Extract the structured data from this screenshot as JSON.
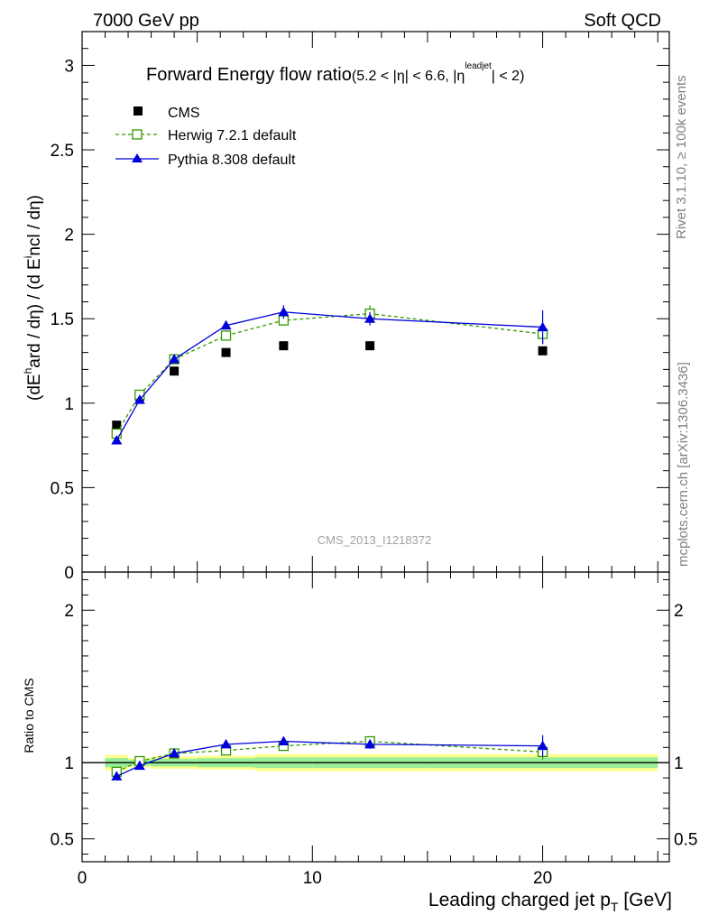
{
  "header": {
    "left": "7000 GeV pp",
    "right": "Soft QCD"
  },
  "side_labels": {
    "top": "Rivet 3.1.10, ≥ 100k events",
    "bottom": "mcplots.cern.ch [arXiv:1306.3436]"
  },
  "watermark": "CMS_2013_I1218372",
  "chart_data": [
    {
      "type": "scatter",
      "panel": "main",
      "title_main": "Forward Energy flow ratio",
      "title_cond_a": "(5.2 < |η| < 6.6, |η",
      "title_cond_sup": "leadjet",
      "title_cond_b": "| < 2)",
      "ylabel": "(dE^hard / dη) / (d E^incl / dη)",
      "xlim": [
        0,
        25.5
      ],
      "ylim": [
        0,
        3.2
      ],
      "yticks": [
        0,
        0.5,
        1,
        1.5,
        2,
        2.5,
        3
      ],
      "ytick_labels": [
        "0",
        "0.5",
        "1",
        "1.5",
        "2",
        "2.5",
        "3"
      ],
      "legend_position": "top-left",
      "series": [
        {
          "name": "CMS",
          "style": "marker",
          "color": "#000000",
          "marker": "filled-square",
          "x": [
            1.5,
            2.5,
            4.0,
            6.25,
            8.75,
            12.5,
            20.0
          ],
          "y": [
            0.87,
            1.04,
            1.19,
            1.3,
            1.34,
            1.34,
            1.31
          ]
        },
        {
          "name": "Herwig 7.2.1 default",
          "style": "dashed",
          "color": "#339900",
          "marker": "open-square",
          "x": [
            1.5,
            2.5,
            4.0,
            6.25,
            8.75,
            12.5,
            20.0
          ],
          "y": [
            0.82,
            1.05,
            1.26,
            1.4,
            1.49,
            1.53,
            1.41
          ],
          "err": [
            0.02,
            0.02,
            0.02,
            0.02,
            0.03,
            0.05,
            0.06
          ]
        },
        {
          "name": "Pythia 8.308 default",
          "style": "solid",
          "color": "#0000dd",
          "marker": "filled-triangle",
          "x": [
            1.5,
            2.5,
            4.0,
            6.25,
            8.75,
            12.5,
            20.0
          ],
          "y": [
            0.78,
            1.02,
            1.26,
            1.46,
            1.54,
            1.5,
            1.45
          ],
          "err": [
            0.01,
            0.01,
            0.01,
            0.02,
            0.04,
            0.04,
            0.1
          ]
        }
      ]
    },
    {
      "type": "scatter",
      "panel": "ratio",
      "ylabel": "Ratio to CMS",
      "xlabel": "Leading charged jet p_T [GeV]",
      "xlim": [
        0,
        25.5
      ],
      "ylim": [
        0.35,
        2.25
      ],
      "yticks": [
        0.5,
        1,
        2
      ],
      "ytick_labels": [
        "0.5",
        "1",
        "2"
      ],
      "xticks": [
        0,
        10,
        20
      ],
      "xtick_labels": [
        "0",
        "10",
        "20"
      ],
      "uncertainty_bands": [
        {
          "x0": 1.0,
          "x1": 2.0,
          "yellow": [
            0.95,
            1.05
          ],
          "green": [
            0.97,
            1.03
          ]
        },
        {
          "x0": 2.0,
          "x1": 3.0,
          "yellow": [
            0.97,
            1.03
          ],
          "green": [
            0.98,
            1.02
          ]
        },
        {
          "x0": 3.0,
          "x1": 5.0,
          "yellow": [
            0.96,
            1.04
          ],
          "green": [
            0.975,
            1.025
          ]
        },
        {
          "x0": 5.0,
          "x1": 7.5,
          "yellow": [
            0.955,
            1.045
          ],
          "green": [
            0.97,
            1.03
          ]
        },
        {
          "x0": 7.5,
          "x1": 10.0,
          "yellow": [
            0.945,
            1.055
          ],
          "green": [
            0.965,
            1.035
          ]
        },
        {
          "x0": 10.0,
          "x1": 15.0,
          "yellow": [
            0.945,
            1.055
          ],
          "green": [
            0.965,
            1.035
          ]
        },
        {
          "x0": 15.0,
          "x1": 25.0,
          "yellow": [
            0.945,
            1.055
          ],
          "green": [
            0.965,
            1.035
          ]
        }
      ],
      "series": [
        {
          "name": "Herwig 7.2.1 default",
          "style": "dashed",
          "color": "#339900",
          "marker": "open-square",
          "x": [
            1.5,
            2.5,
            4.0,
            6.25,
            8.75,
            12.5,
            20.0
          ],
          "y": [
            0.94,
            1.01,
            1.06,
            1.08,
            1.11,
            1.14,
            1.07
          ],
          "err": [
            0.02,
            0.02,
            0.02,
            0.02,
            0.02,
            0.03,
            0.05
          ]
        },
        {
          "name": "Pythia 8.308 default",
          "style": "solid",
          "color": "#0000dd",
          "marker": "filled-triangle",
          "x": [
            1.5,
            2.5,
            4.0,
            6.25,
            8.75,
            12.5,
            20.0
          ],
          "y": [
            0.91,
            0.98,
            1.06,
            1.12,
            1.14,
            1.12,
            1.11
          ],
          "err": [
            0.01,
            0.01,
            0.01,
            0.015,
            0.02,
            0.03,
            0.07
          ]
        }
      ]
    }
  ]
}
